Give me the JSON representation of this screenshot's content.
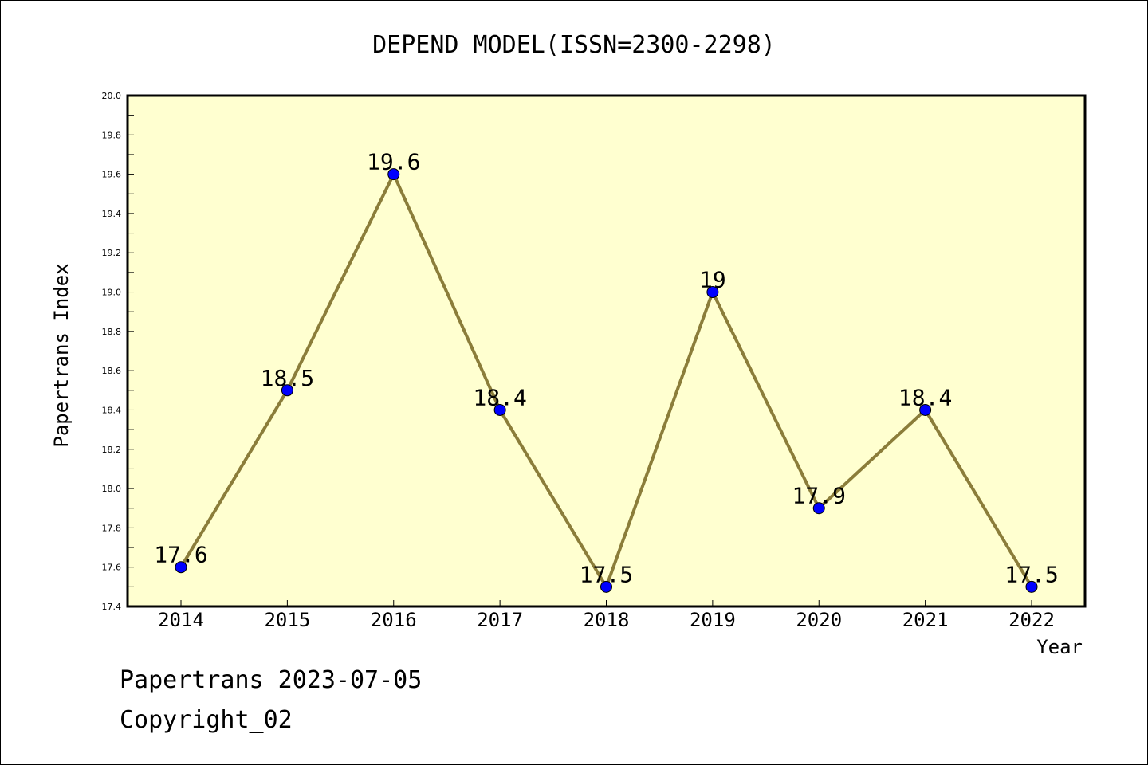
{
  "chart_data": {
    "type": "line",
    "title": "DEPEND MODEL(ISSN=2300-2298)",
    "xlabel": "Year",
    "ylabel": "Papertrans Index",
    "categories": [
      "2014",
      "2015",
      "2016",
      "2017",
      "2018",
      "2019",
      "2020",
      "2021",
      "2022"
    ],
    "series": [
      {
        "values": [
          17.6,
          18.5,
          19.6,
          18.4,
          17.5,
          19.0,
          17.9,
          18.4,
          17.5
        ],
        "labels": [
          "17.6",
          "18.5",
          "19.6",
          "18.4",
          "17.5",
          "19",
          "17.9",
          "18.4",
          "17.5"
        ]
      }
    ],
    "ylim": [
      17.4,
      20.0
    ],
    "yticks": [
      "17.4",
      "17.6",
      "17.8",
      "18.0",
      "18.2",
      "18.4",
      "18.6",
      "18.8",
      "19.0",
      "19.2",
      "19.4",
      "19.6",
      "19.8",
      "20.0"
    ],
    "grid": false,
    "colors": {
      "plot_background": "#ffffd0",
      "line": "#8b7d3a",
      "marker": "#0000ff"
    }
  },
  "footer": {
    "line1": "Papertrans 2023-07-05",
    "line2": "Copyright_02"
  }
}
